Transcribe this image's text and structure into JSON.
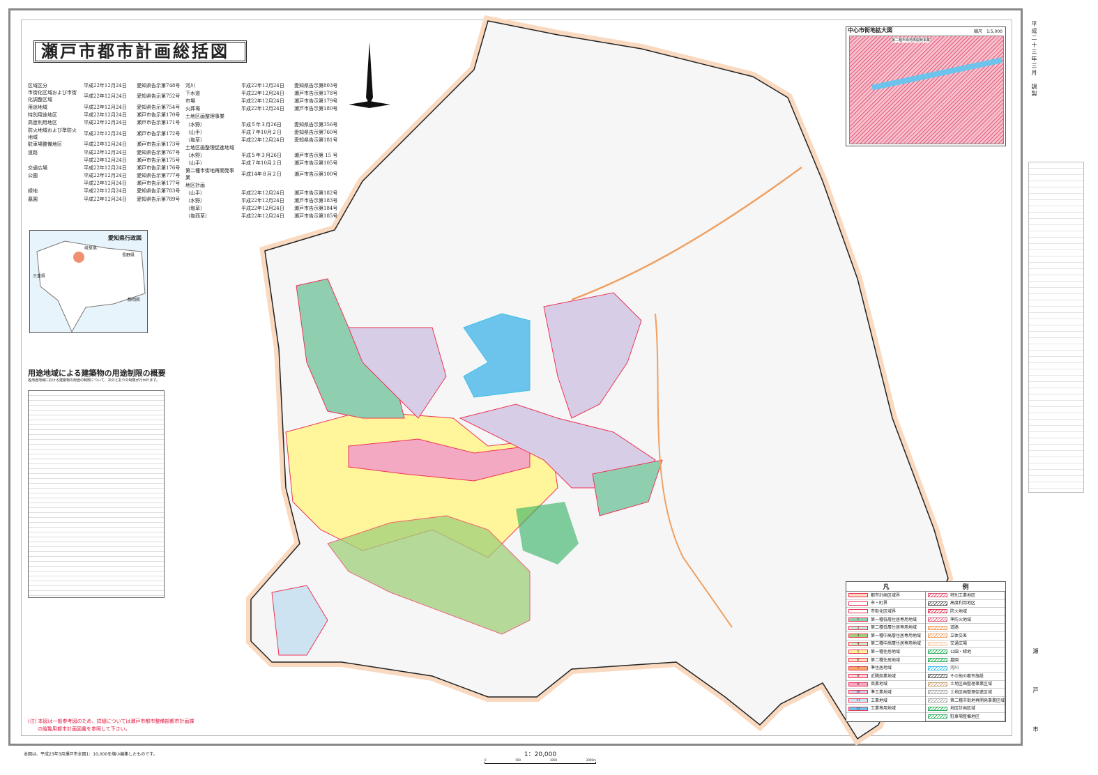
{
  "title": "瀬戸市都市計画総括図",
  "decisions_left": [
    [
      "区域区分",
      "平成22年12月24日",
      "愛知県告示第748号"
    ],
    [
      "市街化区域および市街化調整区域",
      "平成22年12月24日",
      "愛知県告示第752号"
    ],
    [
      "用途地域",
      "平成22年12月24日",
      "愛知県告示第754号"
    ],
    [
      "特別用途地区",
      "平成22年12月24日",
      "瀬戸市告示第170号"
    ],
    [
      "高度利用地区",
      "平成22年12月24日",
      "瀬戸市告示第171号"
    ],
    [
      "防火地域および準防火地域",
      "平成22年12月24日",
      "瀬戸市告示第172号"
    ],
    [
      "駐車場整備地区",
      "平成22年12月24日",
      "瀬戸市告示第173号"
    ],
    [
      "道路",
      "平成22年12月24日",
      "愛知県告示第767号"
    ],
    [
      "",
      "平成22年12月24日",
      "瀬戸市告示第175号"
    ],
    [
      "交通広場",
      "平成22年12月24日",
      "瀬戸市告示第176号"
    ],
    [
      "公園",
      "平成22年12月24日",
      "愛知県告示第777号"
    ],
    [
      "",
      "平成22年12月24日",
      "瀬戸市告示第177号"
    ],
    [
      "緑地",
      "平成22年12月24日",
      "愛知県告示第783号"
    ],
    [
      "墓園",
      "平成22年12月24日",
      "愛知県告示第789号"
    ]
  ],
  "decisions_right": [
    [
      "河川",
      "平成22年12月24日",
      "愛知県告示第803号"
    ],
    [
      "下水道",
      "平成22年12月24日",
      "瀬戸市告示第178号"
    ],
    [
      "市場",
      "平成22年12月24日",
      "瀬戸市告示第179号"
    ],
    [
      "火葬場",
      "平成22年12月24日",
      "瀬戸市告示第180号"
    ],
    [
      "土地区画整理事業",
      "",
      ""
    ],
    [
      "（水野）",
      "平成５年３月26日",
      "愛知県告示第356号"
    ],
    [
      "（山手）",
      "平成７年10月２日",
      "愛知県告示第760号"
    ],
    [
      "（塩草）",
      "平成22年12月24日",
      "愛知県告示第181号"
    ],
    [
      "土地区画整理促進地域",
      "",
      ""
    ],
    [
      "（水野）",
      "平成５年３月26日",
      "瀬戸市告示第 15 号"
    ],
    [
      "（山手）",
      "平成７年10月２日",
      "瀬戸市告示第105号"
    ],
    [
      "第二種市街地再開発事業",
      "平成14年８月２日",
      "瀬戸市告示第100号"
    ],
    [
      "地区計画",
      "",
      ""
    ],
    [
      "（山手）",
      "平成22年12月24日",
      "瀬戸市告示第182号"
    ],
    [
      "（水野）",
      "平成22年12月24日",
      "瀬戸市告示第183号"
    ],
    [
      "（塩草）",
      "平成22年12月24日",
      "瀬戸市告示第184号"
    ],
    [
      "（塩西草）",
      "平成22年12月24日",
      "瀬戸市告示第185号"
    ]
  ],
  "prefecture_map": {
    "title": "愛知県行政図",
    "labels": [
      "岐阜県",
      "長野県",
      "静岡県",
      "三重県"
    ]
  },
  "city_center_inset": {
    "title": "中心市街地拡大図",
    "scale": "縮尺　1:5,000",
    "label": "第二種市街地再開発事業"
  },
  "use_restriction": {
    "title": "用途地域による建築物の用途制限の概要",
    "desc": "各用途地域における建築物の用途の制限について、次のとおりの制限が行われます。"
  },
  "legend": {
    "heading": [
      "凡",
      "例"
    ],
    "left": [
      {
        "n": "",
        "label": "都市計画区域界",
        "color": "#f9d9bf"
      },
      {
        "n": "",
        "label": "市・町界",
        "color": "#ffffff"
      },
      {
        "n": "",
        "label": "市街化区域界",
        "color": "#ffffff"
      },
      {
        "n": "1",
        "label": "第一種低層住居専用地域",
        "color": "#8fcfb0"
      },
      {
        "n": "2",
        "label": "第二種低層住居専用地域",
        "color": "#cbe8dc"
      },
      {
        "n": "3",
        "label": "第一種中高層住居専用地域",
        "color": "#9fd07a"
      },
      {
        "n": "4",
        "label": "第二種中高層住居専用地域",
        "color": "#d6ebc9"
      },
      {
        "n": "5",
        "label": "第一種住居地域",
        "color": "#fff59a"
      },
      {
        "n": "6",
        "label": "第二種住居地域",
        "color": "#fde0c0"
      },
      {
        "n": "7",
        "label": "準住居地域",
        "color": "#f7a866"
      },
      {
        "n": "8",
        "label": "近隣商業地域",
        "color": "#fcd4dc"
      },
      {
        "n": "9",
        "label": "商業地域",
        "color": "#f4a9c2"
      },
      {
        "n": "10",
        "label": "準工業地域",
        "color": "#d8cde6"
      },
      {
        "n": "11",
        "label": "工業地域",
        "color": "#cde3f2"
      },
      {
        "n": "12",
        "label": "工業専用地域",
        "color": "#6cc4ec"
      }
    ],
    "right": [
      {
        "label": "特別工業地区",
        "color": "#e35a7a"
      },
      {
        "label": "高度利用地区",
        "color": "#555555"
      },
      {
        "label": "防火地域",
        "color": "#e33a5a"
      },
      {
        "label": "準防火地域",
        "color": "#e35a7a"
      },
      {
        "label": "道路",
        "color": "#f0a060"
      },
      {
        "label": "立体交差",
        "color": "#f0a060"
      },
      {
        "label": "交通広場",
        "color": "#f9d0b0"
      },
      {
        "label": "公園・緑地",
        "color": "#2fb060"
      },
      {
        "label": "墓園",
        "color": "#2fb060"
      },
      {
        "label": "河川",
        "color": "#3bbfe8"
      },
      {
        "label": "その他の都市施設",
        "color": "#666666"
      },
      {
        "label": "土地区画整理事業区域",
        "color": "#c8a070"
      },
      {
        "label": "土地区画整理促進区域",
        "color": "#aaaaaa"
      },
      {
        "label": "第二種市街地再開発事業区域",
        "color": "#aaaaaa"
      },
      {
        "label": "地区計画区域",
        "color": "#2fb060"
      },
      {
        "label": "駐車場整備地区",
        "color": "#2fb060"
      }
    ]
  },
  "note": [
    "(注) 本図は一般参考図のため、詳細については瀬戸市都市整備部都市計画課",
    "の縦覧用都市計画図書を参照して下さい。"
  ],
  "footer": "本図は、平成23年3月瀬戸市全図1：10,000を縮小編集したものです。",
  "scale": {
    "ratio": "1：20,000",
    "ticks": [
      "0",
      "500",
      "1000",
      "2000m"
    ]
  },
  "side_date": "平成二十三年三月　調製",
  "side_city": "瀬　戸　市"
}
